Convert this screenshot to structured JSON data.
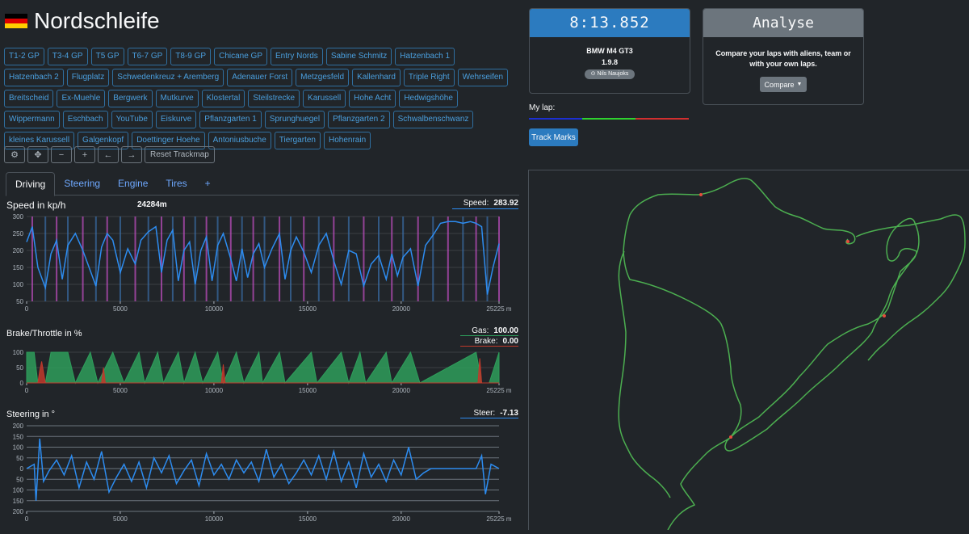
{
  "track": {
    "name": "Nordschleife",
    "flag": [
      "#000000",
      "#dd0000",
      "#ffce00"
    ]
  },
  "corners": [
    "T1-2 GP",
    "T3-4 GP",
    "T5 GP",
    "T6-7 GP",
    "T8-9 GP",
    "Chicane GP",
    "Entry Nords",
    "Sabine Schmitz",
    "Hatzenbach 1",
    "Hatzenbach 2",
    "Flugplatz",
    "Schwedenkreuz + Aremberg",
    "Adenauer Forst",
    "Metzgesfeld",
    "Kallenhard",
    "Triple Right",
    "Wehrseifen",
    "Breitscheid",
    "Ex-Muehle",
    "Bergwerk",
    "Mutkurve",
    "Klostertal",
    "Steilstrecke",
    "Karussell",
    "Hohe Acht",
    "Hedwigshöhe",
    "Wippermann",
    "Eschbach",
    "YouTube",
    "Eiskurve",
    "Pflanzgarten 1",
    "Sprunghuegel",
    "Pflanzgarten 2",
    "Schwalbenschwanz",
    "kleines Karussell",
    "Galgenkopf",
    "Doettinger Hoehe",
    "Antoniusbuche",
    "Tiergarten",
    "Hohenrain"
  ],
  "toolbar": {
    "icons": [
      "gear-icon",
      "move-icon",
      "minus-icon",
      "plus-icon",
      "arrow-left-icon",
      "arrow-right-icon"
    ],
    "glyphs": [
      "⚙",
      "✥",
      "−",
      "+",
      "←",
      "→"
    ],
    "reset": "Reset Trackmap"
  },
  "tabs": [
    "Driving",
    "Steering",
    "Engine",
    "Tires",
    "+"
  ],
  "speed_panel": {
    "title": "Speed in kp/h",
    "distance": "24284m",
    "readout_label": "Speed:",
    "readout_value": "283.92"
  },
  "pedal_panel": {
    "title": "Brake/Throttle in %",
    "gas_label": "Gas:",
    "gas_value": "100.00",
    "brake_label": "Brake:",
    "brake_value": "0.00"
  },
  "steer_panel": {
    "title": "Steering in °",
    "readout_label": "Steer:",
    "readout_value": "-7.13"
  },
  "lap_card": {
    "time": "8:13.852",
    "car": "BMW M4 GT3",
    "version": "1.9.8",
    "driver": "Nils Naujoks"
  },
  "analyse_card": {
    "title": "Analyse",
    "description": "Compare your laps with aliens, team or with your own laps.",
    "button": "Compare"
  },
  "my_lap": {
    "label": "My lap:",
    "colors": [
      "#1c2fd1",
      "#2fd12f",
      "#d12f2f"
    ]
  },
  "track_marks_button": "Track Marks",
  "chart_data": [
    {
      "type": "line",
      "title": "Speed in kp/h",
      "x_ticks": [
        0,
        5000,
        10000,
        15000,
        20000,
        "25225 m"
      ],
      "y_ticks": [
        300,
        250,
        200,
        150,
        100,
        50
      ],
      "xlim": [
        0,
        25225
      ],
      "ylim": [
        50,
        300
      ],
      "series": [
        {
          "color": "#2d8cf0",
          "x": [
            0,
            300,
            600,
            1000,
            1300,
            1600,
            1900,
            2200,
            2600,
            3000,
            3400,
            3700,
            4000,
            4300,
            4600,
            5000,
            5400,
            5800,
            6100,
            6500,
            6900,
            7200,
            7500,
            7800,
            8100,
            8400,
            8700,
            9000,
            9300,
            9600,
            9900,
            10200,
            10500,
            10900,
            11200,
            11500,
            11800,
            12100,
            12400,
            12700,
            13100,
            13500,
            13800,
            14100,
            14400,
            14800,
            15200,
            15600,
            16000,
            16400,
            16800,
            17200,
            17600,
            18000,
            18400,
            18800,
            19200,
            19500,
            19800,
            20100,
            20500,
            20900,
            21300,
            21700,
            22100,
            22500,
            22900,
            23300,
            23700,
            24000,
            24300,
            24600,
            24900,
            25225
          ],
          "y": [
            225,
            270,
            150,
            90,
            190,
            230,
            115,
            215,
            250,
            200,
            140,
            95,
            210,
            250,
            230,
            135,
            205,
            160,
            230,
            255,
            270,
            135,
            230,
            260,
            110,
            200,
            225,
            100,
            200,
            240,
            110,
            215,
            250,
            175,
            110,
            205,
            120,
            190,
            220,
            150,
            205,
            250,
            115,
            200,
            240,
            195,
            135,
            215,
            250,
            170,
            100,
            200,
            190,
            95,
            160,
            185,
            115,
            190,
            125,
            180,
            205,
            95,
            215,
            245,
            280,
            285,
            285,
            280,
            285,
            280,
            270,
            70,
            150,
            220
          ]
        }
      ]
    },
    {
      "type": "area",
      "title": "Brake/Throttle in %",
      "x_ticks": [
        0,
        5000,
        10000,
        15000,
        20000,
        "25225 m"
      ],
      "y_ticks": [
        100,
        50,
        0
      ],
      "xlim": [
        0,
        25225
      ],
      "ylim": [
        0,
        100
      ],
      "series": [
        {
          "name": "Gas",
          "color": "#2e9e5b",
          "x": [
            0,
            400,
            600,
            1000,
            1300,
            2200,
            2600,
            3400,
            3800,
            4600,
            5200,
            6000,
            6300,
            7000,
            7300,
            8100,
            8400,
            9000,
            9400,
            10200,
            10500,
            11200,
            11600,
            12400,
            12600,
            13500,
            13800,
            15200,
            15500,
            16800,
            17200,
            17800,
            18100,
            19200,
            19500,
            20500,
            21000,
            24000,
            24300,
            24700,
            25225
          ],
          "y": [
            100,
            100,
            0,
            0,
            100,
            100,
            0,
            100,
            0,
            100,
            0,
            100,
            0,
            100,
            0,
            100,
            0,
            100,
            0,
            100,
            0,
            100,
            0,
            100,
            0,
            100,
            0,
            100,
            0,
            100,
            0,
            100,
            0,
            100,
            0,
            100,
            0,
            100,
            0,
            0,
            100
          ]
        },
        {
          "name": "Brake",
          "color": "#c0392b",
          "x": [
            0,
            600,
            700,
            800,
            1000,
            4000,
            4100,
            4200,
            10400,
            10500,
            10600,
            24100,
            24200,
            24300,
            25225
          ],
          "y": [
            0,
            0,
            40,
            70,
            0,
            0,
            50,
            0,
            0,
            60,
            0,
            0,
            80,
            0,
            0
          ]
        }
      ]
    },
    {
      "type": "line",
      "title": "Steering in °",
      "x_ticks": [
        0,
        5000,
        10000,
        15000,
        20000,
        "25225 m"
      ],
      "y_ticks": [
        -200,
        -150,
        -100,
        -50,
        0,
        50,
        100,
        150,
        200
      ],
      "xlim": [
        0,
        25225
      ],
      "ylim": [
        -200,
        200
      ],
      "series": [
        {
          "color": "#2d8cf0",
          "x": [
            0,
            400,
            500,
            700,
            900,
            1200,
            1600,
            2000,
            2400,
            2800,
            3200,
            3600,
            4000,
            4400,
            4800,
            5200,
            5600,
            6000,
            6400,
            6800,
            7200,
            7600,
            8000,
            8400,
            8800,
            9200,
            9600,
            10000,
            10400,
            10800,
            11200,
            11600,
            12000,
            12400,
            12800,
            13200,
            13600,
            14000,
            14400,
            14800,
            15200,
            15600,
            16000,
            16400,
            16800,
            17200,
            17600,
            18000,
            18400,
            18800,
            19200,
            19600,
            20000,
            20400,
            20800,
            21200,
            21600,
            22000,
            22400,
            22800,
            23200,
            23600,
            24000,
            24300,
            24500,
            24800,
            25225
          ],
          "y": [
            0,
            -20,
            150,
            -140,
            60,
            10,
            -40,
            30,
            -60,
            90,
            -30,
            50,
            -80,
            110,
            40,
            -20,
            60,
            -30,
            90,
            -50,
            20,
            -60,
            70,
            10,
            -40,
            80,
            -70,
            30,
            -20,
            50,
            -40,
            20,
            -30,
            60,
            -90,
            40,
            -20,
            70,
            20,
            -40,
            30,
            -60,
            50,
            -80,
            60,
            -30,
            90,
            -70,
            40,
            -20,
            60,
            -40,
            30,
            -100,
            50,
            20,
            0,
            0,
            0,
            0,
            0,
            0,
            0,
            -60,
            120,
            -20,
            0
          ]
        }
      ]
    }
  ]
}
